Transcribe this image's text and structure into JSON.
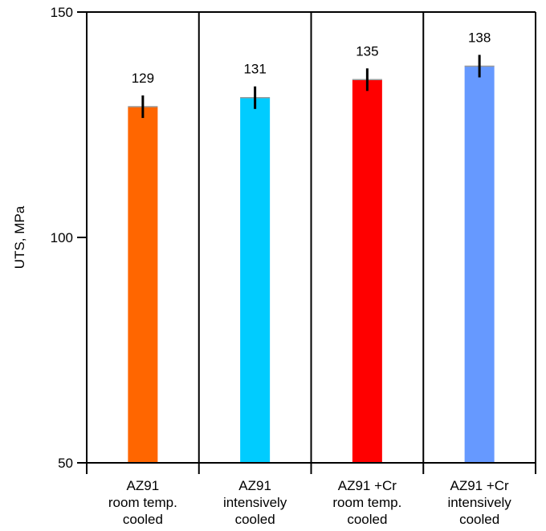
{
  "chart_data": {
    "type": "bar",
    "title": "",
    "xlabel": "",
    "ylabel": "UTS, MPa",
    "ylim": [
      50,
      150
    ],
    "yticks": [
      50,
      100,
      150
    ],
    "categories": [
      [
        "AZ91",
        "room temp.",
        "cooled"
      ],
      [
        "AZ91",
        "intensively",
        "cooled"
      ],
      [
        "AZ91 +Cr",
        "room temp.",
        "cooled"
      ],
      [
        "AZ91 +Cr",
        "intensively",
        "cooled"
      ]
    ],
    "values": [
      129,
      131,
      135,
      138
    ],
    "value_labels": [
      "129",
      "131",
      "135",
      "138"
    ],
    "error": [
      2.5,
      2.5,
      2.5,
      2.5
    ],
    "colors": [
      "#ff6600",
      "#00ccff",
      "#ff0000",
      "#6699ff"
    ],
    "grid": false,
    "panel_dividers": true
  }
}
